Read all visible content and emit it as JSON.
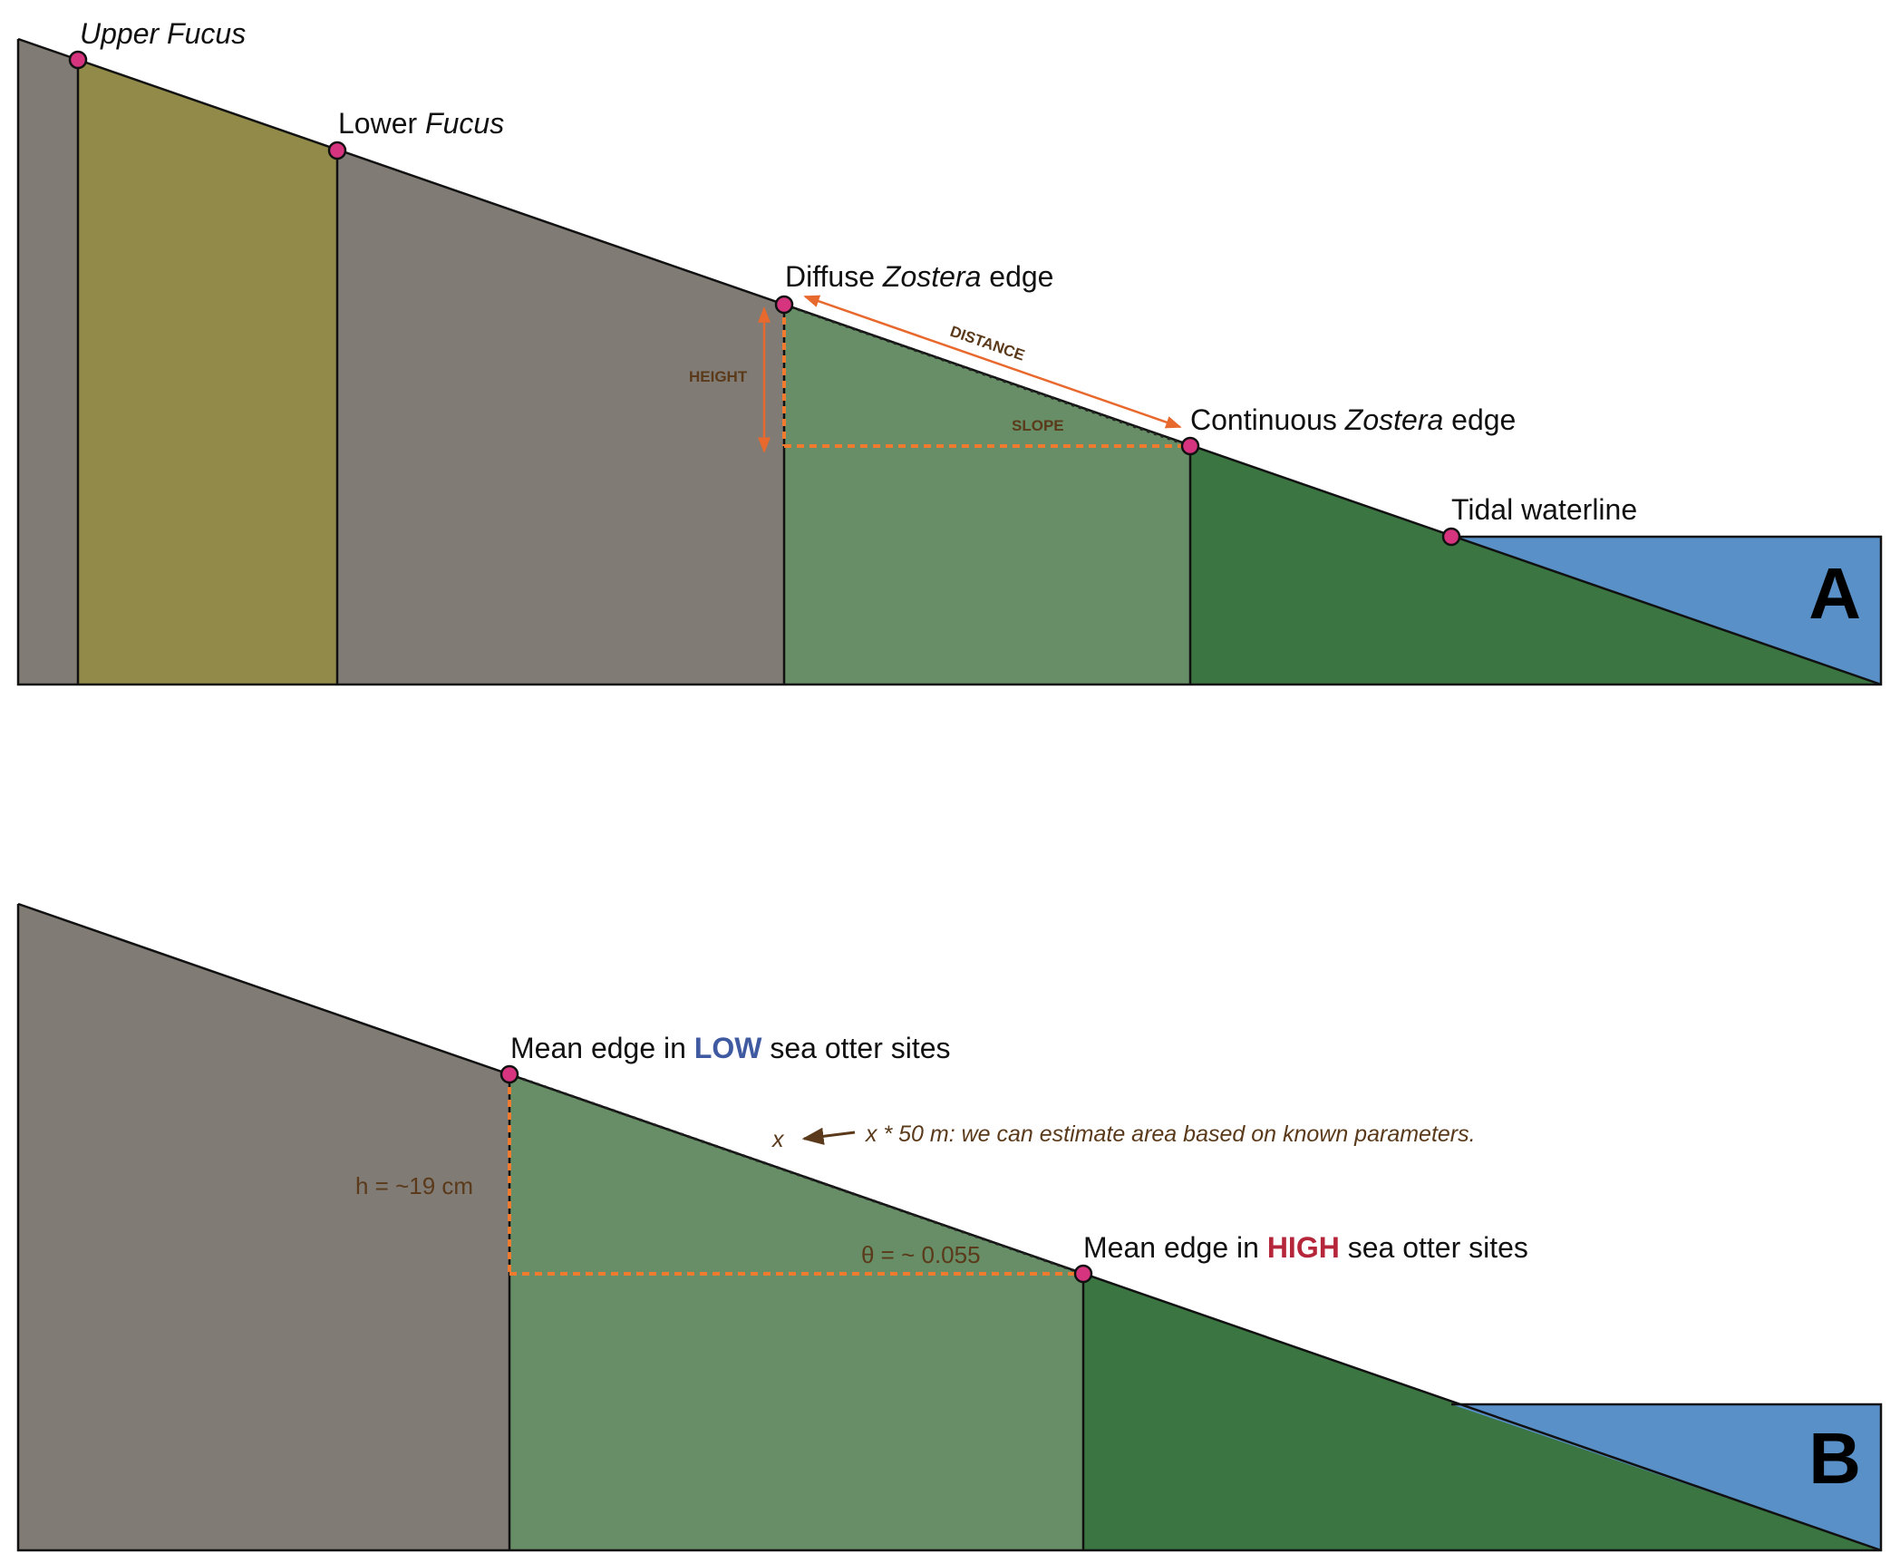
{
  "colors": {
    "rock": "#807b74",
    "fucus": "#928a48",
    "diffuse_zostera": "#678e66",
    "continuous_zostera": "#3b7541",
    "water": "#5890c7",
    "marker": "#d6347e",
    "annotation_arrow": "#e8692d",
    "annotation_text": "#5a3a1a",
    "low_emphasis": "#3f5aa0",
    "high_emphasis": "#b5263a"
  },
  "panel_a": {
    "letter": "A",
    "labels": {
      "upper_fucus": {
        "italic": "Upper Fucus"
      },
      "lower_fucus": {
        "pre": "Lower ",
        "italic": "Fucus"
      },
      "diffuse": {
        "pre": "Diffuse ",
        "italic": "Zostera",
        "post": " edge"
      },
      "continuous": {
        "pre": "Continuous ",
        "italic": "Zostera",
        "post": " edge"
      },
      "tidal": {
        "pre": "Tidal waterline"
      }
    },
    "tags": {
      "height": "HEIGHT",
      "distance": "DISTANCE",
      "slope": "SLOPE"
    }
  },
  "panel_b": {
    "letter": "B",
    "low_label": {
      "pre": "Mean edge in ",
      "emph": "LOW",
      "post": " sea otter sites"
    },
    "high_label": {
      "pre": "Mean edge in ",
      "emph": "HIGH",
      "post": " sea otter sites"
    },
    "height_annotation": "h = ~19 cm",
    "angle_annotation": "θ = ~ 0.055",
    "x_symbol": "x",
    "area_note": "x * 50 m: we can estimate area based on known parameters."
  }
}
